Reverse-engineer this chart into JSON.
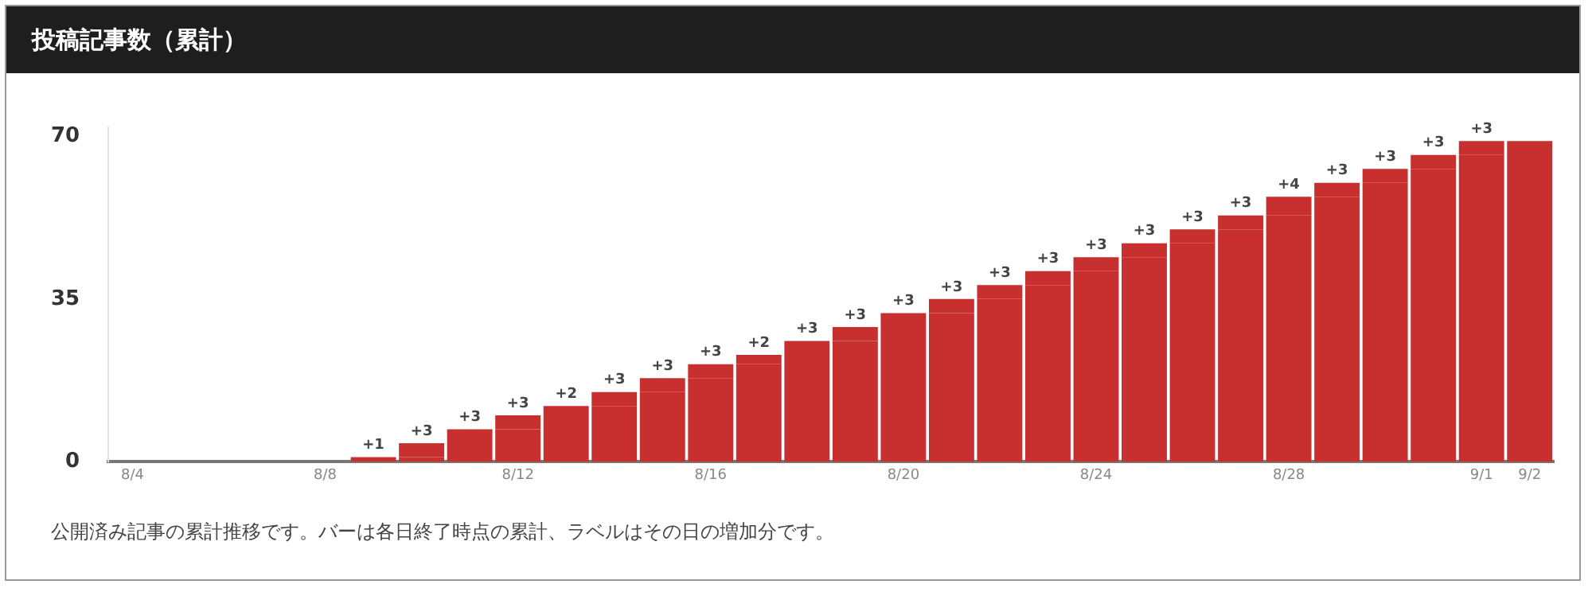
{
  "chart_data": {
    "type": "bar",
    "title": "投稿記事数（累計）",
    "categories": [
      "8/4",
      null,
      null,
      null,
      "8/8",
      null,
      null,
      null,
      "8/12",
      null,
      null,
      null,
      "8/16",
      null,
      null,
      null,
      "8/20",
      null,
      null,
      null,
      "8/24",
      null,
      null,
      null,
      "8/28",
      null,
      null,
      null,
      "9/1",
      "9/2"
    ],
    "stacked": true,
    "series": [
      {
        "color": "#c8302f",
        "values": [
          0,
          0,
          0,
          0,
          0,
          0,
          1,
          4,
          7,
          10,
          12,
          15,
          18,
          21,
          23,
          26,
          29,
          32,
          35,
          38,
          41,
          44,
          47,
          50,
          53,
          57,
          60,
          63,
          66,
          69
        ]
      },
      {
        "color": "#c8302f",
        "values": [
          0,
          0,
          0,
          0,
          0,
          1,
          3,
          3,
          3,
          2,
          3,
          3,
          3,
          2,
          3,
          3,
          3,
          3,
          3,
          3,
          3,
          3,
          3,
          3,
          4,
          3,
          3,
          3,
          3,
          0
        ],
        "value_labels": [
          null,
          null,
          null,
          null,
          null,
          "+1",
          "+3",
          "+3",
          "+3",
          "+2",
          "+3",
          "+3",
          "+3",
          "+2",
          "+3",
          "+3",
          "+3",
          "+3",
          "+3",
          "+3",
          "+3",
          "+3",
          "+3",
          "+3",
          "+4",
          "+3",
          "+3",
          "+3",
          "+3",
          null
        ]
      }
    ],
    "ylim": [
      0,
      72
    ],
    "yticks": [
      0,
      35,
      70
    ],
    "grid": false,
    "legend": false,
    "annotations": [
      "公開済み記事の累計推移です。バーは各日終了時点の累計、ラベルはその日の増加分です。"
    ]
  }
}
